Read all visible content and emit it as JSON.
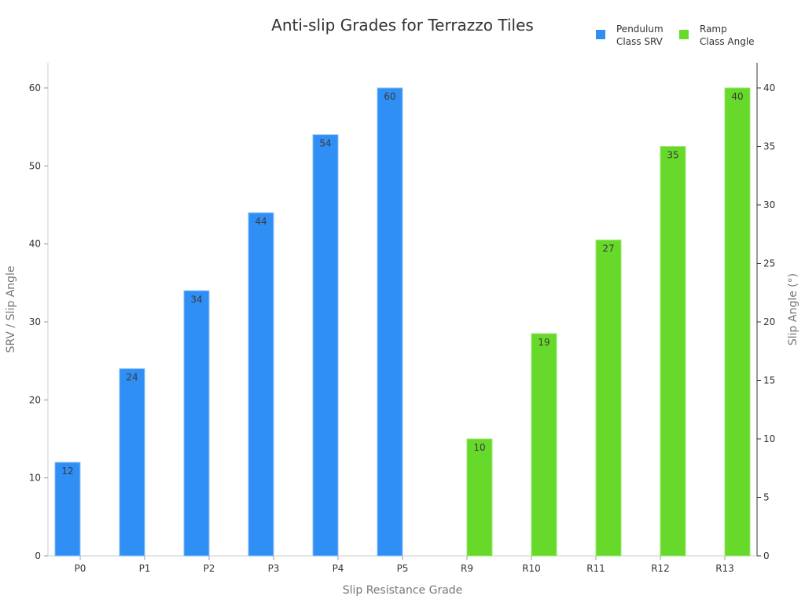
{
  "chart_data": {
    "type": "bar",
    "title": "Anti-slip Grades for Terrazzo Tiles",
    "xlabel": "Slip Resistance Grade",
    "ylabel": "SRV / Slip Angle",
    "y2label": "Slip Angle (°)",
    "categories": [
      "P0",
      "P1",
      "P2",
      "P3",
      "P4",
      "P5",
      "R9",
      "R10",
      "R11",
      "R12",
      "R13"
    ],
    "series": [
      {
        "name": "Pendulum Class SRV",
        "axis": "left",
        "color": "#2f8ff5",
        "categories": [
          "P0",
          "P1",
          "P2",
          "P3",
          "P4",
          "P5"
        ],
        "values": [
          12,
          24,
          34,
          44,
          54,
          60
        ]
      },
      {
        "name": "Ramp Class Angle",
        "axis": "right",
        "color": "#66d92a",
        "categories": [
          "R9",
          "R10",
          "R11",
          "R12",
          "R13"
        ],
        "values": [
          10,
          19,
          27,
          35,
          40
        ]
      }
    ],
    "ylim": [
      0,
      63
    ],
    "y2lim": [
      0,
      42
    ],
    "yticks": [
      0,
      10,
      20,
      30,
      40,
      50,
      60
    ],
    "y2ticks": [
      0,
      5,
      10,
      15,
      20,
      25,
      30,
      35,
      40
    ],
    "grid": false,
    "legend_position": "top-right"
  },
  "legend": [
    {
      "label": "Pendulum\nClass SRV",
      "color": "#2f8ff5"
    },
    {
      "label": "Ramp\nClass Angle",
      "color": "#66d92a"
    }
  ]
}
